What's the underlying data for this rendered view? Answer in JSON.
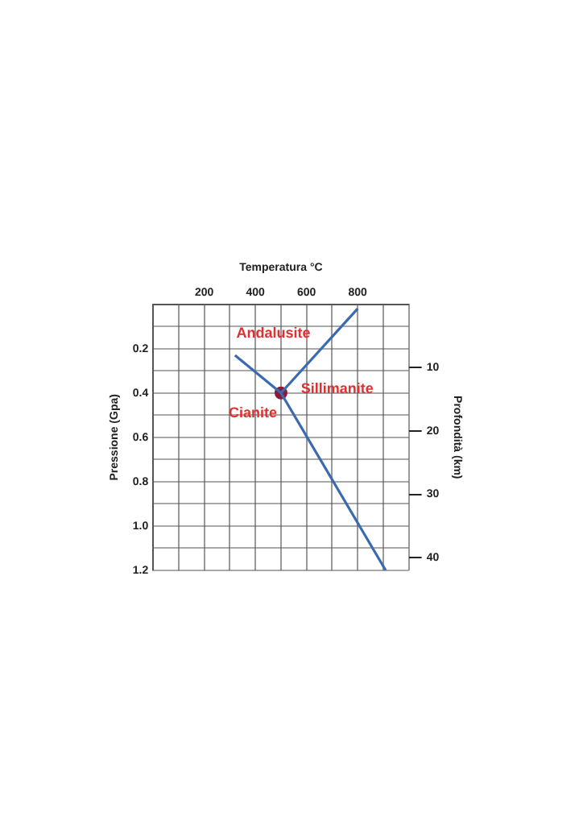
{
  "chart_data": {
    "type": "line",
    "xlabel": "Temperatura °C",
    "ylabel": "Pressione (Gpa)",
    "y2label": "Profondità (km)",
    "xlim": [
      0,
      1000
    ],
    "xticks": [
      {
        "value": 0,
        "label": null
      },
      {
        "value": 100,
        "label": null
      },
      200,
      {
        "value": 300,
        "label": null
      },
      400,
      {
        "value": 500,
        "label": null
      },
      600,
      {
        "value": 700,
        "label": null
      },
      800,
      {
        "value": 900,
        "label": null
      },
      {
        "value": 1000,
        "label": null
      }
    ],
    "ylim": [
      1.2,
      0
    ],
    "yticks": [
      {
        "value": 0,
        "label": null
      },
      {
        "value": 0.1,
        "label": null
      },
      0.2,
      {
        "value": 0.3,
        "label": null
      },
      0.4,
      {
        "value": 0.5,
        "label": null
      },
      0.6,
      {
        "value": 0.7,
        "label": null
      },
      0.8,
      {
        "value": 0.9,
        "label": null
      },
      {
        "value": 1,
        "label": "1.0"
      },
      {
        "value": 1.1,
        "label": null
      },
      1.2
    ],
    "y2lim": [
      42,
      0
    ],
    "y2ticks": [
      10,
      20,
      30,
      40
    ],
    "grid": true,
    "legend": false,
    "marker": "none",
    "series": [
      {
        "color": "#3a6ab0",
        "x": [
          320,
          500
        ],
        "values": [
          0.23,
          0.4
        ]
      },
      {
        "color": "#3a6ab0",
        "x": [
          500,
          800
        ],
        "values": [
          0.4,
          0.02
        ]
      },
      {
        "color": "#3a6ab0",
        "x": [
          500,
          910
        ],
        "values": [
          0.4,
          1.2
        ]
      },
      {
        "type": "scatter",
        "color": "#8b1a3a",
        "marker": "circle",
        "x": [
          500
        ],
        "values": [
          0.4
        ]
      }
    ],
    "annotations": [
      "Andalusite",
      "Sillimanite",
      "Cianite"
    ]
  }
}
